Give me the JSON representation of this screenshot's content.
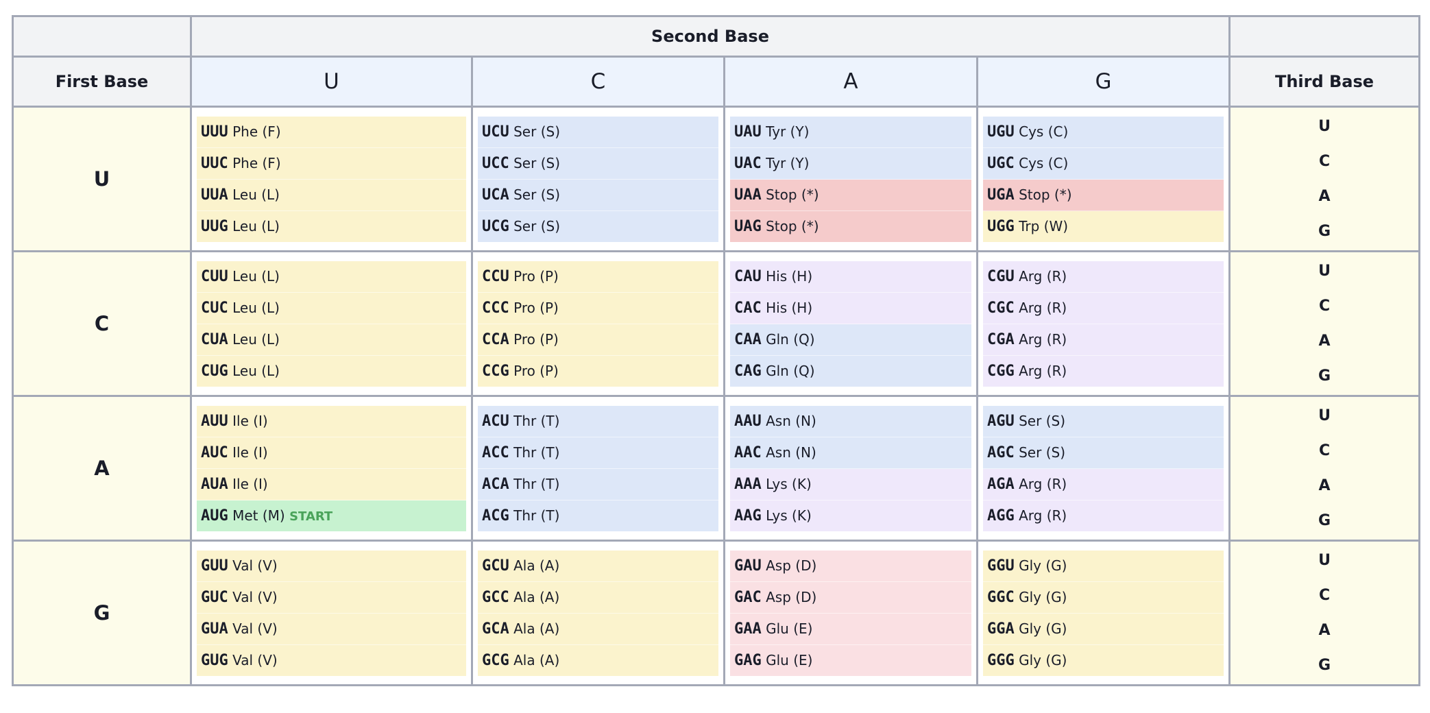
{
  "header": {
    "second_base": "Second Base",
    "first_base": "First Base",
    "third_base": "Third Base",
    "second_bases": [
      "U",
      "C",
      "A",
      "G"
    ]
  },
  "third_bases": [
    "U",
    "C",
    "A",
    "G"
  ],
  "colors": {
    "yellow": "#fbf3cd",
    "blue": "#dde7f8",
    "red": "#f5cbcb",
    "pink": "#fae0e3",
    "purple": "#efe8fb",
    "green": "#c7f2d0"
  },
  "rows": [
    {
      "first": "U",
      "cells": [
        [
          {
            "codon": "UUU",
            "aa": "Phe (F)",
            "color": "yellow"
          },
          {
            "codon": "UUC",
            "aa": "Phe (F)",
            "color": "yellow"
          },
          {
            "codon": "UUA",
            "aa": "Leu (L)",
            "color": "yellow"
          },
          {
            "codon": "UUG",
            "aa": "Leu (L)",
            "color": "yellow"
          }
        ],
        [
          {
            "codon": "UCU",
            "aa": "Ser (S)",
            "color": "blue"
          },
          {
            "codon": "UCC",
            "aa": "Ser (S)",
            "color": "blue"
          },
          {
            "codon": "UCA",
            "aa": "Ser (S)",
            "color": "blue"
          },
          {
            "codon": "UCG",
            "aa": "Ser (S)",
            "color": "blue"
          }
        ],
        [
          {
            "codon": "UAU",
            "aa": "Tyr (Y)",
            "color": "blue"
          },
          {
            "codon": "UAC",
            "aa": "Tyr (Y)",
            "color": "blue"
          },
          {
            "codon": "UAA",
            "aa": "Stop (*)",
            "color": "red"
          },
          {
            "codon": "UAG",
            "aa": "Stop (*)",
            "color": "red"
          }
        ],
        [
          {
            "codon": "UGU",
            "aa": "Cys (C)",
            "color": "blue"
          },
          {
            "codon": "UGC",
            "aa": "Cys (C)",
            "color": "blue"
          },
          {
            "codon": "UGA",
            "aa": "Stop (*)",
            "color": "red"
          },
          {
            "codon": "UGG",
            "aa": "Trp (W)",
            "color": "yellow"
          }
        ]
      ]
    },
    {
      "first": "C",
      "cells": [
        [
          {
            "codon": "CUU",
            "aa": "Leu (L)",
            "color": "yellow"
          },
          {
            "codon": "CUC",
            "aa": "Leu (L)",
            "color": "yellow"
          },
          {
            "codon": "CUA",
            "aa": "Leu (L)",
            "color": "yellow"
          },
          {
            "codon": "CUG",
            "aa": "Leu (L)",
            "color": "yellow"
          }
        ],
        [
          {
            "codon": "CCU",
            "aa": "Pro (P)",
            "color": "yellow"
          },
          {
            "codon": "CCC",
            "aa": "Pro (P)",
            "color": "yellow"
          },
          {
            "codon": "CCA",
            "aa": "Pro (P)",
            "color": "yellow"
          },
          {
            "codon": "CCG",
            "aa": "Pro (P)",
            "color": "yellow"
          }
        ],
        [
          {
            "codon": "CAU",
            "aa": "His (H)",
            "color": "purple"
          },
          {
            "codon": "CAC",
            "aa": "His (H)",
            "color": "purple"
          },
          {
            "codon": "CAA",
            "aa": "Gln (Q)",
            "color": "blue"
          },
          {
            "codon": "CAG",
            "aa": "Gln (Q)",
            "color": "blue"
          }
        ],
        [
          {
            "codon": "CGU",
            "aa": "Arg (R)",
            "color": "purple"
          },
          {
            "codon": "CGC",
            "aa": "Arg (R)",
            "color": "purple"
          },
          {
            "codon": "CGA",
            "aa": "Arg (R)",
            "color": "purple"
          },
          {
            "codon": "CGG",
            "aa": "Arg (R)",
            "color": "purple"
          }
        ]
      ]
    },
    {
      "first": "A",
      "cells": [
        [
          {
            "codon": "AUU",
            "aa": "Ile (I)",
            "color": "yellow"
          },
          {
            "codon": "AUC",
            "aa": "Ile (I)",
            "color": "yellow"
          },
          {
            "codon": "AUA",
            "aa": "Ile (I)",
            "color": "yellow"
          },
          {
            "codon": "AUG",
            "aa": "Met (M)",
            "color": "green",
            "tag": "START"
          }
        ],
        [
          {
            "codon": "ACU",
            "aa": "Thr (T)",
            "color": "blue"
          },
          {
            "codon": "ACC",
            "aa": "Thr (T)",
            "color": "blue"
          },
          {
            "codon": "ACA",
            "aa": "Thr (T)",
            "color": "blue"
          },
          {
            "codon": "ACG",
            "aa": "Thr (T)",
            "color": "blue"
          }
        ],
        [
          {
            "codon": "AAU",
            "aa": "Asn (N)",
            "color": "blue"
          },
          {
            "codon": "AAC",
            "aa": "Asn (N)",
            "color": "blue"
          },
          {
            "codon": "AAA",
            "aa": "Lys (K)",
            "color": "purple"
          },
          {
            "codon": "AAG",
            "aa": "Lys (K)",
            "color": "purple"
          }
        ],
        [
          {
            "codon": "AGU",
            "aa": "Ser (S)",
            "color": "blue"
          },
          {
            "codon": "AGC",
            "aa": "Ser (S)",
            "color": "blue"
          },
          {
            "codon": "AGA",
            "aa": "Arg (R)",
            "color": "purple"
          },
          {
            "codon": "AGG",
            "aa": "Arg (R)",
            "color": "purple"
          }
        ]
      ]
    },
    {
      "first": "G",
      "cells": [
        [
          {
            "codon": "GUU",
            "aa": "Val (V)",
            "color": "yellow"
          },
          {
            "codon": "GUC",
            "aa": "Val (V)",
            "color": "yellow"
          },
          {
            "codon": "GUA",
            "aa": "Val (V)",
            "color": "yellow"
          },
          {
            "codon": "GUG",
            "aa": "Val (V)",
            "color": "yellow"
          }
        ],
        [
          {
            "codon": "GCU",
            "aa": "Ala (A)",
            "color": "yellow"
          },
          {
            "codon": "GCC",
            "aa": "Ala (A)",
            "color": "yellow"
          },
          {
            "codon": "GCA",
            "aa": "Ala (A)",
            "color": "yellow"
          },
          {
            "codon": "GCG",
            "aa": "Ala (A)",
            "color": "yellow"
          }
        ],
        [
          {
            "codon": "GAU",
            "aa": "Asp (D)",
            "color": "pink"
          },
          {
            "codon": "GAC",
            "aa": "Asp (D)",
            "color": "pink"
          },
          {
            "codon": "GAA",
            "aa": "Glu (E)",
            "color": "pink"
          },
          {
            "codon": "GAG",
            "aa": "Glu (E)",
            "color": "pink"
          }
        ],
        [
          {
            "codon": "GGU",
            "aa": "Gly (G)",
            "color": "yellow"
          },
          {
            "codon": "GGC",
            "aa": "Gly (G)",
            "color": "yellow"
          },
          {
            "codon": "GGA",
            "aa": "Gly (G)",
            "color": "yellow"
          },
          {
            "codon": "GGG",
            "aa": "Gly (G)",
            "color": "yellow"
          }
        ]
      ]
    }
  ]
}
